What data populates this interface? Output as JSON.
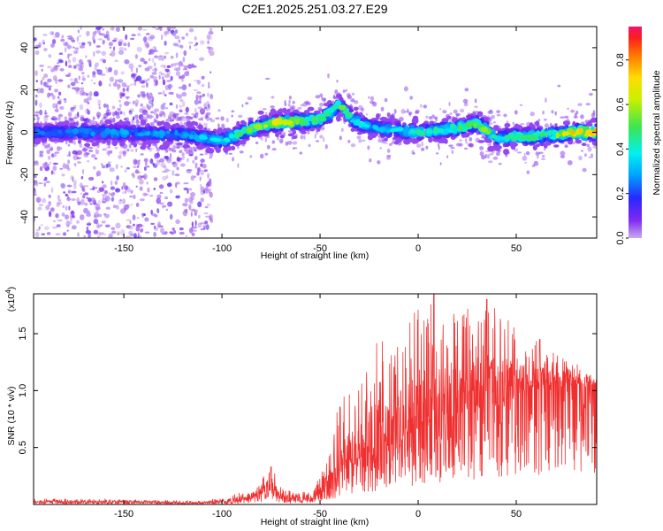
{
  "figure_title": "C2E1.2025.251.03.27.E29",
  "colors": {
    "axis": "#000000",
    "snr_line": "#f03030",
    "background": "#ffffff"
  },
  "chart_data": [
    {
      "type": "heatmap",
      "title": "C2E1.2025.251.03.27.E29",
      "xlabel": "Height of straight line (km)",
      "ylabel": "Frequency (Hz)",
      "xlim": [
        -196,
        91
      ],
      "ylim": [
        -50,
        50
      ],
      "xticks": [
        -150,
        -100,
        -50,
        0,
        50
      ],
      "xtick_labels": [
        "-150",
        "-100",
        "-50",
        "0",
        "50"
      ],
      "yticks": [
        -40,
        -20,
        0,
        20,
        40
      ],
      "ytick_labels": [
        "-40",
        "-20",
        "0",
        "20",
        "40"
      ],
      "colorbar": {
        "label": "Normalized spectral amplitude",
        "range": [
          0,
          0.95
        ],
        "ticks": [
          0.0,
          0.2,
          0.4,
          0.6,
          0.8
        ],
        "tick_labels": [
          "0.0",
          "0.2",
          "0.4",
          "0.6",
          "0.8"
        ],
        "colormap": "rainbow"
      },
      "ridge": {
        "description": "dominant frequency (Hz) vs height (km) of the bright spectral band",
        "x": [
          -196,
          -160,
          -120,
          -100,
          -90,
          -80,
          -70,
          -60,
          -50,
          -45,
          -40,
          -35,
          -30,
          -20,
          -10,
          0,
          10,
          20,
          30,
          35,
          40,
          50,
          60,
          70,
          80,
          91
        ],
        "y": [
          0,
          0,
          -1,
          -4,
          0,
          3,
          5,
          5,
          6,
          9,
          13,
          8,
          4,
          2,
          1,
          0,
          1,
          2,
          4,
          1,
          -3,
          -2,
          -2,
          -1,
          0,
          0
        ],
        "peak_amplitude": [
          0.25,
          0.3,
          0.3,
          0.4,
          0.5,
          0.6,
          0.7,
          0.6,
          0.5,
          0.5,
          0.55,
          0.45,
          0.4,
          0.35,
          0.4,
          0.45,
          0.45,
          0.5,
          0.55,
          0.6,
          0.4,
          0.5,
          0.55,
          0.6,
          0.75,
          0.8
        ]
      },
      "noise_region_x": [
        -196,
        -105
      ]
    },
    {
      "type": "line",
      "xlabel": "Height of straight line (km)",
      "ylabel": "SNR (10 * v/v)",
      "yscale_label": "(x10",
      "yscale_exponent": "4",
      "yscale_suffix": ")",
      "xlim": [
        -196,
        91
      ],
      "ylim": [
        0,
        1.85
      ],
      "xticks": [
        -150,
        -100,
        -50,
        0,
        50
      ],
      "xtick_labels": [
        "-150",
        "-100",
        "-50",
        "0",
        "50"
      ],
      "yticks": [
        0.5,
        1.0,
        1.5
      ],
      "ytick_labels": [
        "0.5",
        "1.0",
        "1.5"
      ],
      "series": [
        {
          "name": "SNR",
          "color": "#f03030",
          "envelope_x": [
            -196,
            -150,
            -110,
            -95,
            -80,
            -75,
            -70,
            -60,
            -55,
            -50,
            -45,
            -40,
            -35,
            -30,
            -25,
            -20,
            -10,
            0,
            10,
            20,
            30,
            40,
            50,
            60,
            70,
            80,
            91
          ],
          "envelope_mean": [
            0.02,
            0.02,
            0.01,
            0.03,
            0.08,
            0.15,
            0.06,
            0.03,
            0.05,
            0.1,
            0.18,
            0.25,
            0.3,
            0.38,
            0.42,
            0.45,
            0.55,
            0.65,
            0.7,
            0.78,
            0.85,
            0.88,
            0.95,
            1.0,
            1.0,
            1.05,
            1.05
          ],
          "envelope_max": [
            0.05,
            0.05,
            0.03,
            0.08,
            0.22,
            0.35,
            0.15,
            0.1,
            0.15,
            0.25,
            0.45,
            0.95,
            1.0,
            1.1,
            1.2,
            1.55,
            1.6,
            1.75,
            1.85,
            1.7,
            1.8,
            1.75,
            1.55,
            1.45,
            1.35,
            1.25,
            1.15
          ],
          "notable_peaks": [
            {
              "x": -75,
              "y": 0.33
            },
            {
              "x": 8,
              "y": 1.85
            },
            {
              "x": 35,
              "y": 1.8
            },
            {
              "x": 62,
              "y": 1.45
            }
          ]
        }
      ]
    }
  ]
}
